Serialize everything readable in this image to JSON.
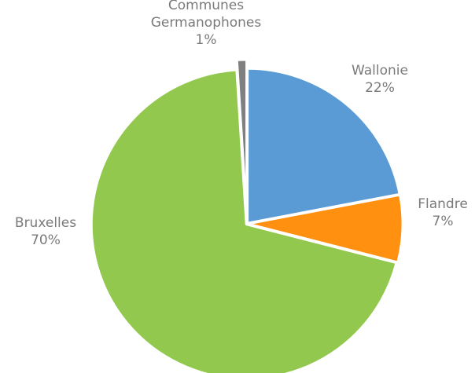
{
  "chart_data": {
    "type": "pie",
    "title": "",
    "legend": "none",
    "slices": [
      {
        "label_lines": [
          "Wallonie"
        ],
        "value": 22,
        "value_label": "22%",
        "color": "#5b9bd5"
      },
      {
        "label_lines": [
          "Flandre"
        ],
        "value": 7,
        "value_label": "7%",
        "color": "#ff9010"
      },
      {
        "label_lines": [
          "Bruxelles"
        ],
        "value": 70,
        "value_label": "70%",
        "color": "#92c84e"
      },
      {
        "label_lines": [
          "Communes",
          "Germanophones"
        ],
        "value": 1,
        "value_label": "1%",
        "color": "#808080"
      }
    ]
  }
}
